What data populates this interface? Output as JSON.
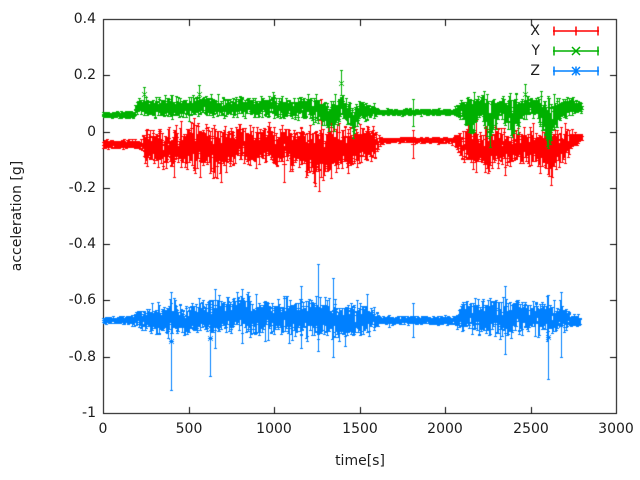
{
  "window": {
    "background": "#ffffff",
    "text_color": "#1c1c1c",
    "axis_color": "#000000"
  },
  "chart_data": {
    "type": "line",
    "style": "errorbars",
    "title": "",
    "xlabel": "time[s]",
    "ylabel": "acceleration [g]",
    "xlim": [
      0,
      3000
    ],
    "ylim": [
      -1,
      0.4
    ],
    "grid": false,
    "legend_position": "top-right-inside",
    "xticks": [
      0,
      500,
      1000,
      1500,
      2000,
      2500,
      3000
    ],
    "xtick_labels": [
      "0",
      "500",
      "1000",
      "1500",
      "2000",
      "2500",
      "3000"
    ],
    "yticks": [
      0.4,
      0.2,
      0,
      -0.2,
      -0.4,
      -0.6,
      -0.8,
      -1
    ],
    "ytick_labels": [
      "0.4",
      "0.2",
      "0",
      "-0.2",
      "-0.4",
      "-0.6",
      "-0.8",
      "-1"
    ],
    "series": [
      {
        "name": "X",
        "color": "#ff0000",
        "marker": "plus",
        "t_end": 2800,
        "envelope": [
          [
            0,
            -0.045,
            0.013
          ],
          [
            225,
            -0.046,
            0.014
          ],
          [
            240,
            -0.05,
            0.045
          ],
          [
            300,
            -0.045,
            0.055
          ],
          [
            350,
            -0.06,
            0.065
          ],
          [
            400,
            -0.055,
            0.06
          ],
          [
            450,
            -0.05,
            0.05
          ],
          [
            500,
            -0.055,
            0.06
          ],
          [
            550,
            -0.065,
            0.07
          ],
          [
            600,
            -0.05,
            0.055
          ],
          [
            650,
            -0.065,
            0.075
          ],
          [
            700,
            -0.055,
            0.06
          ],
          [
            750,
            -0.06,
            0.065
          ],
          [
            800,
            -0.05,
            0.055
          ],
          [
            850,
            -0.06,
            0.06
          ],
          [
            900,
            -0.05,
            0.05
          ],
          [
            950,
            -0.045,
            0.055
          ],
          [
            1000,
            -0.06,
            0.06
          ],
          [
            1050,
            -0.05,
            0.05
          ],
          [
            1100,
            -0.06,
            0.065
          ],
          [
            1150,
            -0.05,
            0.06
          ],
          [
            1200,
            -0.07,
            0.075
          ],
          [
            1260,
            -0.09,
            0.09
          ],
          [
            1320,
            -0.065,
            0.08
          ],
          [
            1380,
            -0.05,
            0.06
          ],
          [
            1450,
            -0.06,
            0.07
          ],
          [
            1520,
            -0.05,
            0.06
          ],
          [
            1580,
            -0.045,
            0.05
          ],
          [
            1615,
            -0.033,
            0.015
          ],
          [
            1650,
            -0.03,
            0.008
          ],
          [
            2050,
            -0.03,
            0.008
          ],
          [
            2090,
            -0.04,
            0.045
          ],
          [
            2150,
            -0.06,
            0.065
          ],
          [
            2200,
            -0.045,
            0.05
          ],
          [
            2260,
            -0.07,
            0.07
          ],
          [
            2320,
            -0.05,
            0.05
          ],
          [
            2400,
            -0.06,
            0.06
          ],
          [
            2470,
            -0.05,
            0.05
          ],
          [
            2550,
            -0.06,
            0.06
          ],
          [
            2620,
            -0.07,
            0.07
          ],
          [
            2680,
            -0.05,
            0.055
          ],
          [
            2730,
            -0.035,
            0.03
          ],
          [
            2800,
            -0.02,
            0.01
          ]
        ],
        "outliers": [
          [
            415,
            -0.16,
            -0.03
          ],
          [
            690,
            -0.18,
            -0.04
          ],
          [
            1060,
            -0.18,
            -0.05
          ],
          [
            1262,
            -0.21,
            -0.05
          ],
          [
            1275,
            -0.03,
            0.115
          ],
          [
            1810,
            -0.095,
            0.005
          ],
          [
            2620,
            -0.19,
            -0.05
          ]
        ]
      },
      {
        "name": "Y",
        "color": "#00b000",
        "marker": "cross",
        "t_end": 2800,
        "envelope": [
          [
            0,
            0.06,
            0.009
          ],
          [
            180,
            0.062,
            0.01
          ],
          [
            200,
            0.09,
            0.022
          ],
          [
            300,
            0.085,
            0.03
          ],
          [
            400,
            0.09,
            0.03
          ],
          [
            500,
            0.085,
            0.028
          ],
          [
            600,
            0.09,
            0.032
          ],
          [
            700,
            0.085,
            0.03
          ],
          [
            800,
            0.09,
            0.03
          ],
          [
            900,
            0.085,
            0.028
          ],
          [
            1000,
            0.09,
            0.03
          ],
          [
            1100,
            0.08,
            0.03
          ],
          [
            1200,
            0.085,
            0.033
          ],
          [
            1290,
            0.07,
            0.04
          ],
          [
            1350,
            0.055,
            0.05
          ],
          [
            1390,
            0.09,
            0.04
          ],
          [
            1430,
            0.07,
            0.04
          ],
          [
            1460,
            0.04,
            0.05
          ],
          [
            1500,
            0.08,
            0.03
          ],
          [
            1560,
            0.075,
            0.025
          ],
          [
            1615,
            0.07,
            0.009
          ],
          [
            2050,
            0.07,
            0.009
          ],
          [
            2100,
            0.08,
            0.03
          ],
          [
            2150,
            0.05,
            0.07
          ],
          [
            2210,
            0.09,
            0.03
          ],
          [
            2260,
            0.04,
            0.08
          ],
          [
            2320,
            0.09,
            0.03
          ],
          [
            2400,
            0.05,
            0.07
          ],
          [
            2460,
            0.09,
            0.033
          ],
          [
            2530,
            0.09,
            0.03
          ],
          [
            2600,
            0.03,
            0.08
          ],
          [
            2660,
            0.08,
            0.04
          ],
          [
            2720,
            0.09,
            0.03
          ],
          [
            2800,
            0.085,
            0.015
          ]
        ],
        "outliers": [
          [
            240,
            0.11,
            0.16
          ],
          [
            560,
            0.1,
            0.165
          ],
          [
            1390,
            0.13,
            0.22
          ],
          [
            1810,
            0.02,
            0.115
          ],
          [
            2470,
            0.1,
            0.17
          ],
          [
            2600,
            -0.06,
            0.04
          ]
        ]
      },
      {
        "name": "Z",
        "color": "#0080ff",
        "marker": "asterisk",
        "t_end": 2790,
        "envelope": [
          [
            0,
            -0.67,
            0.009
          ],
          [
            150,
            -0.67,
            0.011
          ],
          [
            200,
            -0.665,
            0.022
          ],
          [
            260,
            -0.67,
            0.035
          ],
          [
            320,
            -0.66,
            0.042
          ],
          [
            400,
            -0.665,
            0.05
          ],
          [
            480,
            -0.67,
            0.042
          ],
          [
            560,
            -0.662,
            0.045
          ],
          [
            640,
            -0.658,
            0.05
          ],
          [
            720,
            -0.65,
            0.052
          ],
          [
            800,
            -0.648,
            0.056
          ],
          [
            880,
            -0.66,
            0.05
          ],
          [
            960,
            -0.66,
            0.046
          ],
          [
            1040,
            -0.655,
            0.05
          ],
          [
            1120,
            -0.66,
            0.055
          ],
          [
            1200,
            -0.66,
            0.056
          ],
          [
            1270,
            -0.665,
            0.06
          ],
          [
            1340,
            -0.668,
            0.052
          ],
          [
            1420,
            -0.67,
            0.055
          ],
          [
            1500,
            -0.662,
            0.046
          ],
          [
            1560,
            -0.665,
            0.04
          ],
          [
            1620,
            -0.67,
            0.012
          ],
          [
            2050,
            -0.67,
            0.012
          ],
          [
            2100,
            -0.66,
            0.045
          ],
          [
            2180,
            -0.655,
            0.05
          ],
          [
            2260,
            -0.655,
            0.055
          ],
          [
            2340,
            -0.66,
            0.05
          ],
          [
            2420,
            -0.655,
            0.05
          ],
          [
            2500,
            -0.657,
            0.05
          ],
          [
            2580,
            -0.663,
            0.046
          ],
          [
            2650,
            -0.66,
            0.04
          ],
          [
            2710,
            -0.665,
            0.028
          ],
          [
            2790,
            -0.67,
            0.014
          ]
        ],
        "outliers": [
          [
            400,
            -0.92,
            -0.57
          ],
          [
            625,
            -0.87,
            -0.6
          ],
          [
            655,
            -0.77,
            -0.56
          ],
          [
            810,
            -0.75,
            -0.56
          ],
          [
            1160,
            -0.77,
            -0.55
          ],
          [
            1255,
            -0.78,
            -0.47
          ],
          [
            1345,
            -0.8,
            -0.52
          ],
          [
            1810,
            -0.73,
            -0.61
          ],
          [
            2350,
            -0.79,
            -0.55
          ],
          [
            2600,
            -0.88,
            -0.58
          ],
          [
            2680,
            -0.8,
            -0.57
          ]
        ]
      }
    ]
  }
}
